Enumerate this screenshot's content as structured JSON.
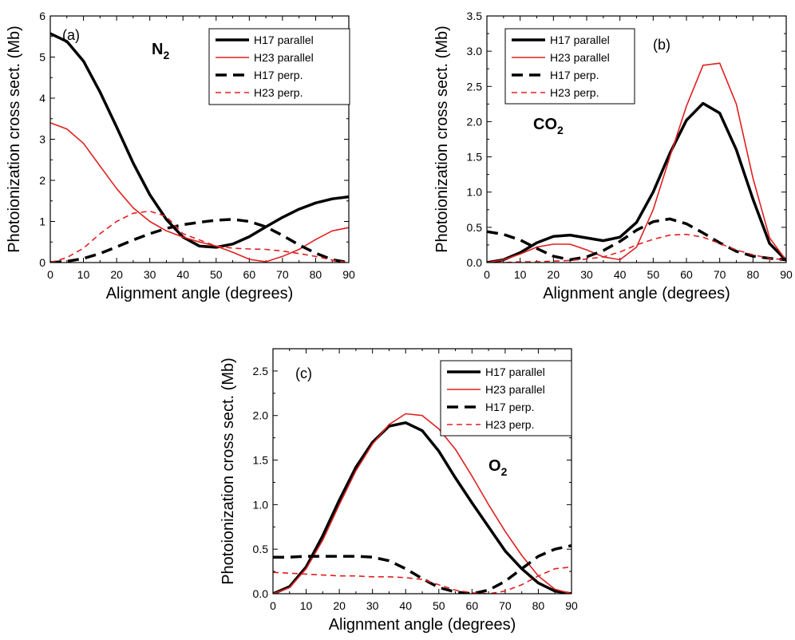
{
  "chart_data": [
    {
      "type": "line",
      "panel_label": "(a)",
      "molecule": "N",
      "molecule_subscript": "2",
      "xlabel": "Alignment angle (degrees)",
      "ylabel": "Photoionization cross sect. (Mb)",
      "xlim": [
        0,
        90
      ],
      "ylim": [
        0,
        6
      ],
      "xticks": [
        0,
        10,
        20,
        30,
        40,
        50,
        60,
        70,
        80,
        90
      ],
      "yticks": [
        0,
        1,
        2,
        3,
        4,
        5,
        6
      ],
      "ytick_labels": [
        "0",
        "1",
        "2",
        "3",
        "4",
        "5",
        "6"
      ],
      "legend_position": "top-right",
      "series": [
        {
          "name": "H17 parallel",
          "color": "#000000",
          "style": "solid-thick",
          "x": [
            0,
            5,
            10,
            15,
            20,
            25,
            30,
            35,
            40,
            45,
            50,
            55,
            60,
            65,
            70,
            75,
            80,
            85,
            90
          ],
          "y": [
            5.57,
            5.38,
            4.9,
            4.15,
            3.3,
            2.42,
            1.65,
            1.05,
            0.62,
            0.4,
            0.37,
            0.45,
            0.63,
            0.87,
            1.1,
            1.3,
            1.45,
            1.55,
            1.6
          ]
        },
        {
          "name": "H23 parallel",
          "color": "#e02020",
          "style": "solid-thin",
          "x": [
            0,
            5,
            10,
            15,
            20,
            25,
            30,
            35,
            40,
            45,
            50,
            55,
            60,
            65,
            70,
            75,
            80,
            85,
            90
          ],
          "y": [
            3.4,
            3.25,
            2.9,
            2.35,
            1.8,
            1.33,
            1.0,
            0.77,
            0.62,
            0.5,
            0.4,
            0.25,
            0.08,
            0.02,
            0.15,
            0.32,
            0.56,
            0.77,
            0.85
          ]
        },
        {
          "name": "H17 perp.",
          "color": "#000000",
          "style": "dashed-thick",
          "x": [
            0,
            5,
            10,
            15,
            20,
            25,
            30,
            35,
            40,
            45,
            50,
            55,
            60,
            65,
            70,
            75,
            80,
            85,
            90
          ],
          "y": [
            0.0,
            0.03,
            0.1,
            0.22,
            0.38,
            0.55,
            0.7,
            0.83,
            0.92,
            0.98,
            1.03,
            1.05,
            1.0,
            0.87,
            0.66,
            0.43,
            0.23,
            0.07,
            0.0
          ]
        },
        {
          "name": "H23 perp.",
          "color": "#e02020",
          "style": "dashed-thin",
          "x": [
            0,
            5,
            10,
            15,
            20,
            25,
            30,
            35,
            40,
            45,
            50,
            55,
            60,
            65,
            70,
            75,
            80,
            85,
            90
          ],
          "y": [
            0.0,
            0.12,
            0.35,
            0.7,
            1.0,
            1.2,
            1.25,
            1.12,
            0.7,
            0.55,
            0.4,
            0.35,
            0.33,
            0.32,
            0.28,
            0.22,
            0.15,
            0.06,
            0.0
          ]
        }
      ]
    },
    {
      "type": "line",
      "panel_label": "(b)",
      "molecule": "CO",
      "molecule_subscript": "2",
      "xlabel": "Alignment angle (degrees)",
      "ylabel": "Photoionization cross sect. (Mb)",
      "xlim": [
        0,
        90
      ],
      "ylim": [
        0,
        3.5
      ],
      "xticks": [
        0,
        10,
        20,
        30,
        40,
        50,
        60,
        70,
        80,
        90
      ],
      "yticks": [
        0,
        0.5,
        1.0,
        1.5,
        2.0,
        2.5,
        3.0,
        3.5
      ],
      "ytick_labels": [
        "0.0",
        "0.5",
        "1.0",
        "1.5",
        "2.0",
        "2.5",
        "3.0",
        "3.5"
      ],
      "legend_position": "top-left",
      "series": [
        {
          "name": "H17 parallel",
          "color": "#000000",
          "style": "solid-thick",
          "x": [
            0,
            5,
            10,
            15,
            20,
            25,
            30,
            35,
            40,
            45,
            50,
            55,
            60,
            65,
            70,
            75,
            80,
            85,
            90
          ],
          "y": [
            0.0,
            0.04,
            0.14,
            0.28,
            0.37,
            0.39,
            0.35,
            0.31,
            0.36,
            0.57,
            1.0,
            1.55,
            2.02,
            2.26,
            2.12,
            1.6,
            0.9,
            0.27,
            0.03
          ]
        },
        {
          "name": "H23 parallel",
          "color": "#e02020",
          "style": "solid-thin",
          "x": [
            0,
            5,
            10,
            15,
            20,
            25,
            30,
            35,
            40,
            45,
            50,
            55,
            60,
            65,
            70,
            75,
            80,
            85,
            90
          ],
          "y": [
            0.0,
            0.04,
            0.12,
            0.22,
            0.26,
            0.26,
            0.18,
            0.08,
            0.04,
            0.22,
            0.75,
            1.5,
            2.22,
            2.8,
            2.83,
            2.25,
            1.2,
            0.35,
            0.03
          ]
        },
        {
          "name": "H17 perp.",
          "color": "#000000",
          "style": "dashed-thick",
          "x": [
            0,
            5,
            10,
            15,
            20,
            25,
            30,
            35,
            40,
            45,
            50,
            55,
            60,
            65,
            70,
            75,
            80,
            85,
            90
          ],
          "y": [
            0.44,
            0.4,
            0.32,
            0.2,
            0.09,
            0.04,
            0.08,
            0.17,
            0.3,
            0.46,
            0.58,
            0.62,
            0.55,
            0.42,
            0.28,
            0.16,
            0.09,
            0.06,
            0.04
          ]
        },
        {
          "name": "H23 perp.",
          "color": "#e02020",
          "style": "dashed-thin",
          "x": [
            0,
            5,
            10,
            15,
            20,
            25,
            30,
            35,
            40,
            45,
            50,
            55,
            60,
            65,
            70,
            75,
            80,
            85,
            90
          ],
          "y": [
            0.0,
            0.0,
            0.01,
            0.01,
            0.02,
            0.03,
            0.05,
            0.08,
            0.15,
            0.25,
            0.33,
            0.39,
            0.4,
            0.36,
            0.27,
            0.18,
            0.11,
            0.06,
            0.04
          ]
        }
      ]
    },
    {
      "type": "line",
      "panel_label": "(c)",
      "molecule": "O",
      "molecule_subscript": "2",
      "xlabel": "Alignment angle (degrees)",
      "ylabel": "Photoionization cross sect. (Mb)",
      "xlim": [
        0,
        90
      ],
      "ylim": [
        0,
        2.75
      ],
      "xticks": [
        0,
        10,
        20,
        30,
        40,
        50,
        60,
        70,
        80,
        90
      ],
      "yticks": [
        0,
        0.5,
        1.0,
        1.5,
        2.0,
        2.5
      ],
      "ytick_labels": [
        "0.0",
        "0.5",
        "1.0",
        "1.5",
        "2.0",
        "2.5"
      ],
      "legend_position": "top-right",
      "series": [
        {
          "name": "H17 parallel",
          "color": "#000000",
          "style": "solid-thick",
          "x": [
            0,
            5,
            10,
            15,
            20,
            25,
            30,
            35,
            40,
            45,
            50,
            55,
            60,
            65,
            70,
            75,
            80,
            85,
            90
          ],
          "y": [
            0.0,
            0.08,
            0.3,
            0.65,
            1.05,
            1.42,
            1.7,
            1.88,
            1.92,
            1.83,
            1.6,
            1.3,
            1.02,
            0.75,
            0.48,
            0.28,
            0.12,
            0.03,
            0.0
          ]
        },
        {
          "name": "H23 parallel",
          "color": "#e02020",
          "style": "solid-thin",
          "x": [
            0,
            5,
            10,
            15,
            20,
            25,
            30,
            35,
            40,
            45,
            50,
            55,
            60,
            65,
            70,
            75,
            80,
            85,
            90
          ],
          "y": [
            0.0,
            0.07,
            0.28,
            0.6,
            1.0,
            1.38,
            1.68,
            1.9,
            2.02,
            2.0,
            1.85,
            1.62,
            1.32,
            1.0,
            0.7,
            0.43,
            0.2,
            0.05,
            0.0
          ]
        },
        {
          "name": "H17 perp.",
          "color": "#000000",
          "style": "dashed-thick",
          "x": [
            0,
            5,
            10,
            15,
            20,
            25,
            30,
            35,
            40,
            45,
            50,
            55,
            60,
            65,
            70,
            75,
            80,
            85,
            90
          ],
          "y": [
            0.41,
            0.41,
            0.42,
            0.42,
            0.42,
            0.42,
            0.41,
            0.37,
            0.28,
            0.17,
            0.07,
            0.02,
            0.0,
            0.04,
            0.14,
            0.28,
            0.42,
            0.5,
            0.54
          ]
        },
        {
          "name": "H23 perp.",
          "color": "#e02020",
          "style": "dashed-thin",
          "x": [
            0,
            5,
            10,
            15,
            20,
            25,
            30,
            35,
            40,
            45,
            50,
            55,
            60,
            65,
            70,
            75,
            80,
            85,
            90
          ],
          "y": [
            0.24,
            0.23,
            0.22,
            0.21,
            0.2,
            0.2,
            0.19,
            0.19,
            0.18,
            0.16,
            0.1,
            0.04,
            0.01,
            0.0,
            0.03,
            0.1,
            0.2,
            0.28,
            0.3
          ]
        }
      ]
    }
  ]
}
